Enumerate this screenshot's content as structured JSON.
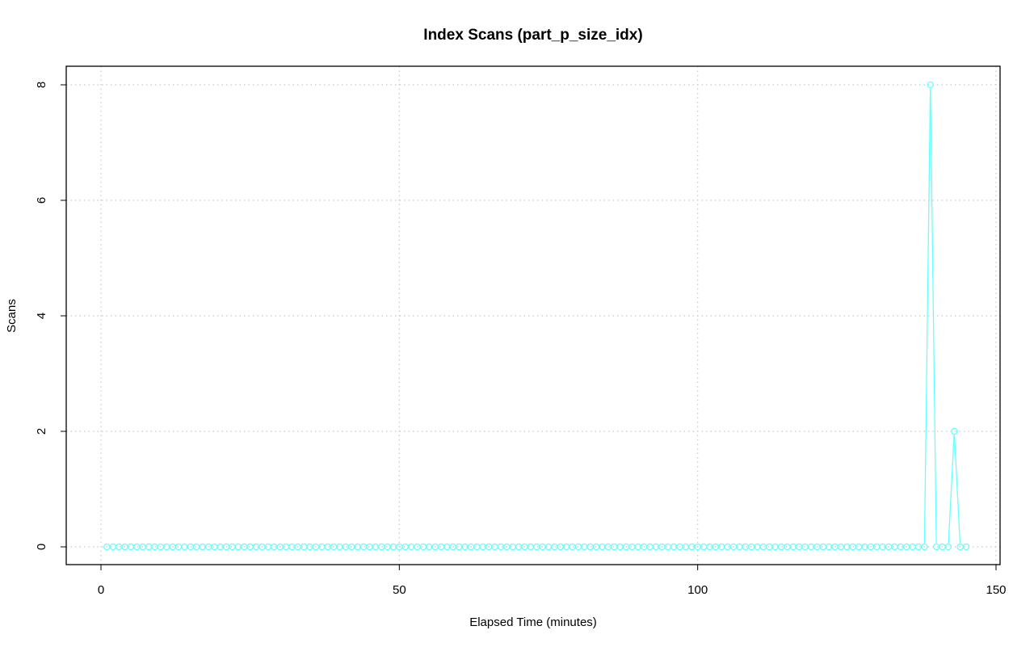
{
  "chart_data": {
    "type": "line",
    "title": "Index Scans (part_p_size_idx)",
    "xlabel": "Elapsed Time (minutes)",
    "ylabel": "Scans",
    "xlim": [
      0,
      150
    ],
    "ylim": [
      0,
      8
    ],
    "x_ticks": [
      "0",
      "50",
      "100",
      "150"
    ],
    "y_ticks": [
      "0",
      "2",
      "4",
      "6",
      "8"
    ],
    "grid": true,
    "markers": "open-circle",
    "series_color": "#66ffff",
    "series": [
      {
        "x": [
          1,
          2,
          3,
          4,
          5,
          6,
          7,
          8,
          9,
          10,
          11,
          12,
          13,
          14,
          15,
          16,
          17,
          18,
          19,
          20,
          21,
          22,
          23,
          24,
          25,
          26,
          27,
          28,
          29,
          30,
          31,
          32,
          33,
          34,
          35,
          36,
          37,
          38,
          39,
          40,
          41,
          42,
          43,
          44,
          45,
          46,
          47,
          48,
          49,
          50,
          51,
          52,
          53,
          54,
          55,
          56,
          57,
          58,
          59,
          60,
          61,
          62,
          63,
          64,
          65,
          66,
          67,
          68,
          69,
          70,
          71,
          72,
          73,
          74,
          75,
          76,
          77,
          78,
          79,
          80,
          81,
          82,
          83,
          84,
          85,
          86,
          87,
          88,
          89,
          90,
          91,
          92,
          93,
          94,
          95,
          96,
          97,
          98,
          99,
          100,
          101,
          102,
          103,
          104,
          105,
          106,
          107,
          108,
          109,
          110,
          111,
          112,
          113,
          114,
          115,
          116,
          117,
          118,
          119,
          120,
          121,
          122,
          123,
          124,
          125,
          126,
          127,
          128,
          129,
          130,
          131,
          132,
          133,
          134,
          135,
          136,
          137,
          138,
          139,
          140,
          141,
          142,
          143,
          144,
          145
        ],
        "values": [
          0,
          0,
          0,
          0,
          0,
          0,
          0,
          0,
          0,
          0,
          0,
          0,
          0,
          0,
          0,
          0,
          0,
          0,
          0,
          0,
          0,
          0,
          0,
          0,
          0,
          0,
          0,
          0,
          0,
          0,
          0,
          0,
          0,
          0,
          0,
          0,
          0,
          0,
          0,
          0,
          0,
          0,
          0,
          0,
          0,
          0,
          0,
          0,
          0,
          0,
          0,
          0,
          0,
          0,
          0,
          0,
          0,
          0,
          0,
          0,
          0,
          0,
          0,
          0,
          0,
          0,
          0,
          0,
          0,
          0,
          0,
          0,
          0,
          0,
          0,
          0,
          0,
          0,
          0,
          0,
          0,
          0,
          0,
          0,
          0,
          0,
          0,
          0,
          0,
          0,
          0,
          0,
          0,
          0,
          0,
          0,
          0,
          0,
          0,
          0,
          0,
          0,
          0,
          0,
          0,
          0,
          0,
          0,
          0,
          0,
          0,
          0,
          0,
          0,
          0,
          0,
          0,
          0,
          0,
          0,
          0,
          0,
          0,
          0,
          0,
          0,
          0,
          0,
          0,
          0,
          0,
          0,
          0,
          0,
          0,
          0,
          0,
          0,
          8,
          0,
          0,
          0,
          2,
          0,
          0
        ]
      }
    ]
  }
}
